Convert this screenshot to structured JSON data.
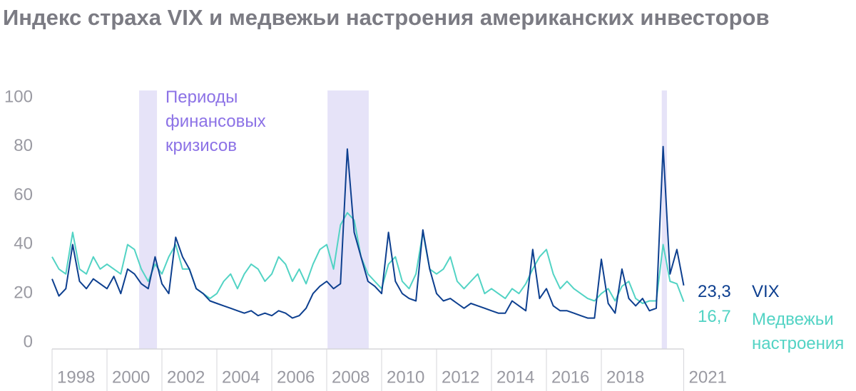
{
  "chart_data": {
    "type": "line",
    "title": "Индекс страха VIX и медвежьи настроения американских инвесторов",
    "annotation": "Периоды финансовых кризисов",
    "shaded": [
      [
        2001.17,
        2001.82
      ],
      [
        2008.03,
        2009.53
      ],
      [
        2020.2,
        2020.39
      ]
    ],
    "x": [
      1998,
      1998.25,
      1998.5,
      1998.75,
      1999,
      1999.25,
      1999.5,
      1999.75,
      2000,
      2000.25,
      2000.5,
      2000.75,
      2001,
      2001.25,
      2001.5,
      2001.75,
      2002,
      2002.25,
      2002.5,
      2002.75,
      2003,
      2003.25,
      2003.5,
      2003.75,
      2004,
      2004.25,
      2004.5,
      2004.75,
      2005,
      2005.25,
      2005.5,
      2005.75,
      2006,
      2006.25,
      2006.5,
      2006.75,
      2007,
      2007.25,
      2007.5,
      2007.75,
      2008,
      2008.25,
      2008.5,
      2008.75,
      2009,
      2009.25,
      2009.5,
      2009.75,
      2010,
      2010.25,
      2010.5,
      2010.75,
      2011,
      2011.25,
      2011.5,
      2011.75,
      2012,
      2012.25,
      2012.5,
      2012.75,
      2013,
      2013.25,
      2013.5,
      2013.75,
      2014,
      2014.25,
      2014.5,
      2014.75,
      2015,
      2015.25,
      2015.5,
      2015.75,
      2016,
      2016.25,
      2016.5,
      2016.75,
      2017,
      2017.25,
      2017.5,
      2017.75,
      2018,
      2018.25,
      2018.5,
      2018.75,
      2019,
      2019.25,
      2019.5,
      2019.75,
      2020,
      2020.25,
      2020.5,
      2020.75,
      2021
    ],
    "series": [
      {
        "name": "VIX",
        "color": "#0d3f8f",
        "end_value": 23.3,
        "end_label": "23,3",
        "values": [
          26,
          19,
          22,
          40,
          25,
          22,
          26,
          24,
          22,
          27,
          20,
          30,
          28,
          24,
          22,
          35,
          24,
          20,
          43,
          35,
          30,
          22,
          20,
          17,
          16,
          15,
          14,
          13,
          12,
          13,
          11,
          12,
          11,
          13,
          12,
          10,
          11,
          14,
          20,
          23,
          25,
          22,
          24,
          79,
          45,
          35,
          25,
          23,
          20,
          45,
          25,
          20,
          18,
          17,
          46,
          30,
          20,
          17,
          18,
          16,
          14,
          16,
          15,
          14,
          13,
          12,
          12,
          17,
          15,
          13,
          38,
          18,
          22,
          15,
          13,
          13,
          12,
          11,
          10,
          10,
          34,
          16,
          12,
          30,
          18,
          15,
          18,
          13,
          14,
          80,
          28,
          38,
          23.3
        ]
      },
      {
        "name": "Медвежьи настроения",
        "color": "#52d3c4",
        "end_value": 16.7,
        "end_label": "16,7",
        "values": [
          35,
          30,
          28,
          45,
          30,
          28,
          35,
          30,
          32,
          30,
          28,
          40,
          38,
          30,
          25,
          32,
          28,
          35,
          40,
          30,
          30,
          22,
          20,
          18,
          20,
          25,
          28,
          22,
          28,
          32,
          30,
          25,
          28,
          35,
          32,
          25,
          30,
          24,
          32,
          38,
          40,
          30,
          48,
          53,
          50,
          35,
          28,
          25,
          22,
          32,
          35,
          25,
          22,
          28,
          45,
          30,
          28,
          30,
          35,
          25,
          22,
          25,
          28,
          20,
          22,
          20,
          18,
          22,
          20,
          24,
          30,
          35,
          38,
          28,
          22,
          25,
          22,
          20,
          18,
          17,
          20,
          22,
          17,
          23,
          25,
          18,
          16,
          17,
          17,
          40,
          25,
          24,
          16.7
        ]
      }
    ],
    "xlim": [
      1998,
      2021
    ],
    "xticks": [
      1998,
      2000,
      2002,
      2004,
      2006,
      2008,
      2010,
      2012,
      2014,
      2016,
      2018,
      2021
    ],
    "ylim": [
      0,
      100
    ],
    "yticks": [
      0,
      20,
      40,
      60,
      80,
      100
    ]
  }
}
